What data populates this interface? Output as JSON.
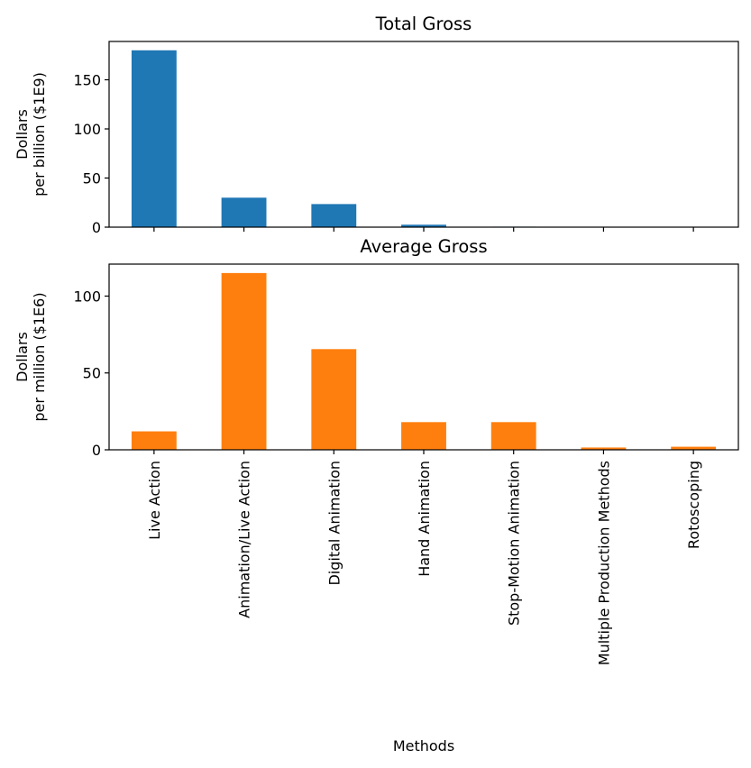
{
  "chart_data": [
    {
      "type": "bar",
      "title": "Total Gross",
      "ylabel_lines": [
        "Dollars",
        "per billion ($1E9)"
      ],
      "xlabel": "",
      "categories": [
        "Live Action",
        "Animation/Live Action",
        "Digital Animation",
        "Hand Animation",
        "Stop-Motion Animation",
        "Multiple Production Methods",
        "Rotoscoping"
      ],
      "values": [
        180,
        30,
        23.5,
        2.5,
        0.5,
        0.1,
        0.1
      ],
      "ylim": [
        0,
        189
      ],
      "yticks": [
        0,
        50,
        100,
        150
      ],
      "color": "#1f77b4",
      "show_xticklabels": false,
      "grid": false,
      "legend": "none"
    },
    {
      "type": "bar",
      "title": "Average Gross",
      "ylabel_lines": [
        "Dollars",
        "per million ($1E6)"
      ],
      "xlabel": "Methods",
      "categories": [
        "Live Action",
        "Animation/Live Action",
        "Digital Animation",
        "Hand Animation",
        "Stop-Motion Animation",
        "Multiple Production Methods",
        "Rotoscoping"
      ],
      "values": [
        12,
        115,
        65.5,
        18,
        18,
        1.5,
        2
      ],
      "ylim": [
        0,
        120.8
      ],
      "yticks": [
        0,
        50,
        100
      ],
      "color": "#ff7f0e",
      "show_xticklabels": true,
      "grid": false,
      "legend": "none"
    }
  ]
}
